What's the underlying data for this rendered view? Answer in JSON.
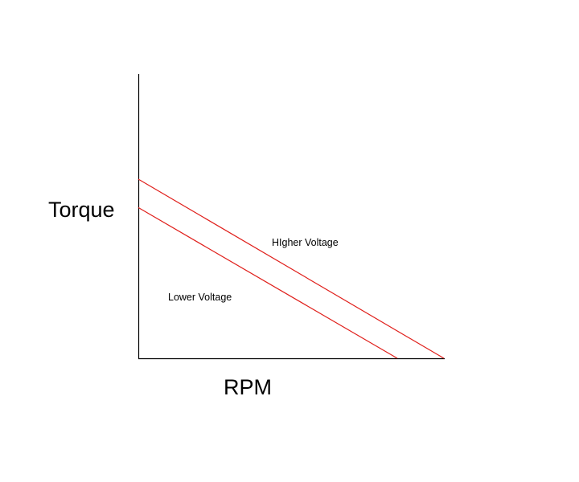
{
  "chart_data": {
    "type": "line",
    "title": "",
    "xlabel": "RPM",
    "ylabel": "Torque",
    "grid": false,
    "legend": "none",
    "xlim": [
      0,
      100
    ],
    "ylim": [
      0,
      100
    ],
    "series_color": "#e0201c",
    "axis_color": "#000000",
    "series": [
      {
        "name": "HIgher Voltage",
        "x": [
          0,
          95
        ],
        "y": [
          63,
          0
        ]
      },
      {
        "name": "Lower Voltage",
        "x": [
          0,
          80.5
        ],
        "y": [
          53,
          0
        ]
      }
    ]
  }
}
